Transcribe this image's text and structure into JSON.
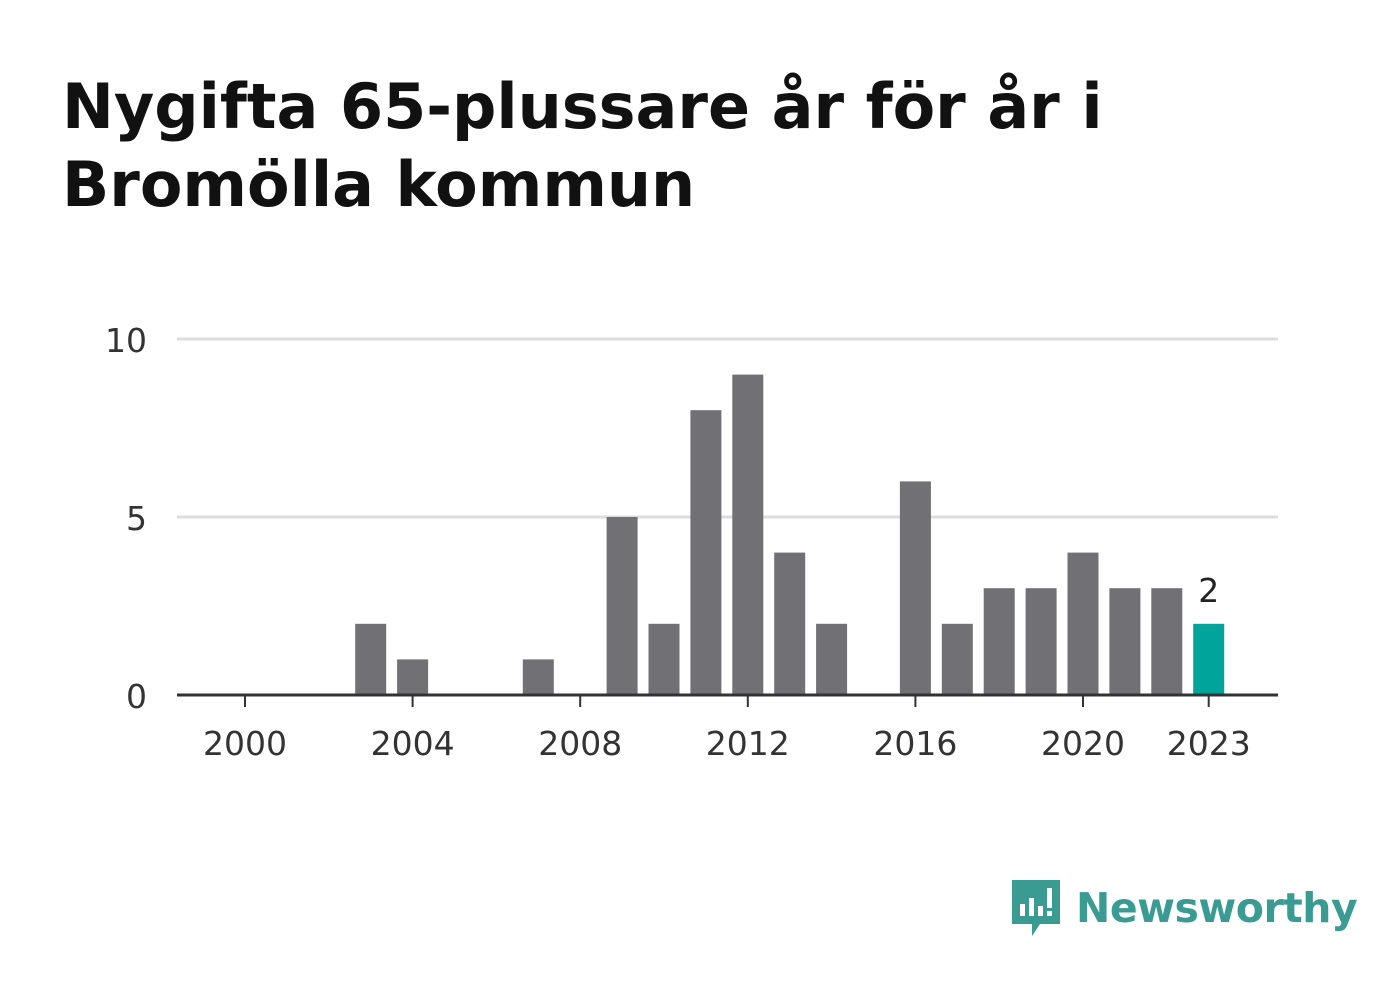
{
  "title": "Nygifta 65-plussare år för år i Bromölla kommun",
  "brand": {
    "name": "Newsworthy",
    "icon": "newsworthy-logo-icon",
    "color": "#3a9b93"
  },
  "colors": {
    "bar": "#707075",
    "highlight": "#00a49a",
    "grid": "#dddddd",
    "axis": "#333333"
  },
  "chart_data": {
    "type": "bar",
    "title": "Nygifta 65-plussare år för år i Bromölla kommun",
    "xlabel": "",
    "ylabel": "",
    "ylim": [
      0,
      10
    ],
    "yticks": [
      0,
      5,
      10
    ],
    "xticks": [
      2000,
      2004,
      2008,
      2012,
      2016,
      2020,
      2023
    ],
    "grid": true,
    "categories": [
      2000,
      2001,
      2002,
      2003,
      2004,
      2005,
      2006,
      2007,
      2008,
      2009,
      2010,
      2011,
      2012,
      2013,
      2014,
      2015,
      2016,
      2017,
      2018,
      2019,
      2020,
      2021,
      2022,
      2023
    ],
    "values": [
      0,
      0,
      0,
      2,
      1,
      0,
      0,
      1,
      0,
      5,
      2,
      8,
      9,
      4,
      2,
      0,
      6,
      2,
      3,
      3,
      4,
      3,
      3,
      2
    ],
    "highlight": {
      "category": 2023,
      "label": "2"
    }
  }
}
